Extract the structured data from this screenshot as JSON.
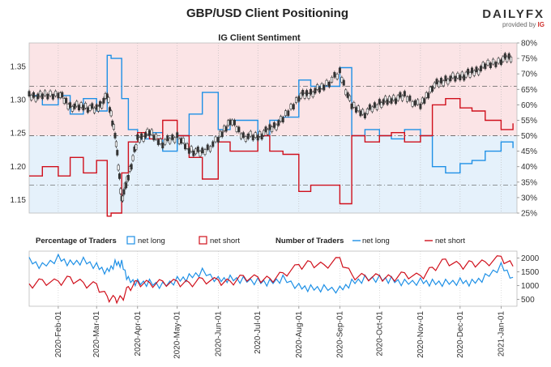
{
  "header": {
    "title": "GBP/USD Client Positioning",
    "subtitle": "IG Client Sentiment",
    "brand": "DAILYFX",
    "brand_sub": "provided by",
    "brand_ig": "IG"
  },
  "colors": {
    "long": "#1e90e6",
    "short": "#d0101c",
    "price": "#333333",
    "long_zone": "#e5f1fb",
    "short_zone": "#fbe4e6"
  },
  "legends": {
    "pct_title": "Percentage of Traders",
    "num_title": "Number of Traders",
    "net_long": "net long",
    "net_short": "net short"
  },
  "chart_data": [
    {
      "type": "line",
      "title": "IG Client Sentiment",
      "left_axis": {
        "ticks": [
          1.15,
          1.2,
          1.25,
          1.3,
          1.35
        ],
        "labels": [
          "1.15",
          "1.20",
          "1.25",
          "1.30",
          "1.35"
        ],
        "range": [
          1.13,
          1.385
        ]
      },
      "right_axis": {
        "ticks": [
          25,
          30,
          35,
          40,
          45,
          50,
          55,
          60,
          65,
          70,
          75,
          80
        ],
        "labels": [
          "25%",
          "30%",
          "35%",
          "40%",
          "45%",
          "50%",
          "55%",
          "60%",
          "65%",
          "70%",
          "75%",
          "80%"
        ],
        "range": [
          25,
          80
        ]
      },
      "reference_lines_pct": [
        34,
        50,
        66
      ],
      "price_series": {
        "name": "GBP/USD",
        "x": [
          "2020-01-10",
          "2020-01-20",
          "2020-02-01",
          "2020-02-10",
          "2020-02-20",
          "2020-03-01",
          "2020-03-09",
          "2020-03-15",
          "2020-03-20",
          "2020-03-25",
          "2020-04-01",
          "2020-04-10",
          "2020-04-20",
          "2020-05-01",
          "2020-05-10",
          "2020-05-20",
          "2020-06-01",
          "2020-06-10",
          "2020-06-20",
          "2020-07-01",
          "2020-07-10",
          "2020-07-20",
          "2020-08-01",
          "2020-08-10",
          "2020-08-20",
          "2020-09-01",
          "2020-09-10",
          "2020-09-20",
          "2020-10-01",
          "2020-10-10",
          "2020-10-20",
          "2020-11-01",
          "2020-11-10",
          "2020-11-20",
          "2020-12-01",
          "2020-12-10",
          "2020-12-20",
          "2021-01-01",
          "2021-01-10"
        ],
        "values": [
          1.305,
          1.305,
          1.31,
          1.29,
          1.29,
          1.285,
          1.305,
          1.25,
          1.15,
          1.185,
          1.24,
          1.25,
          1.235,
          1.245,
          1.225,
          1.22,
          1.24,
          1.27,
          1.245,
          1.245,
          1.255,
          1.27,
          1.305,
          1.31,
          1.32,
          1.34,
          1.29,
          1.28,
          1.295,
          1.3,
          1.305,
          1.29,
          1.32,
          1.33,
          1.335,
          1.34,
          1.35,
          1.36,
          1.365
        ]
      },
      "series": [
        {
          "name": "net long",
          "x": [
            "2020-01-10",
            "2020-01-20",
            "2020-02-01",
            "2020-02-10",
            "2020-02-20",
            "2020-03-01",
            "2020-03-09",
            "2020-03-12",
            "2020-03-20",
            "2020-03-25",
            "2020-04-01",
            "2020-04-10",
            "2020-04-20",
            "2020-05-01",
            "2020-05-10",
            "2020-05-20",
            "2020-06-01",
            "2020-06-10",
            "2020-06-20",
            "2020-07-01",
            "2020-07-10",
            "2020-07-20",
            "2020-08-01",
            "2020-08-10",
            "2020-08-20",
            "2020-09-01",
            "2020-09-10",
            "2020-09-20",
            "2020-10-01",
            "2020-10-10",
            "2020-10-20",
            "2020-11-01",
            "2020-11-10",
            "2020-11-20",
            "2020-12-01",
            "2020-12-10",
            "2020-12-20",
            "2021-01-01",
            "2021-01-10"
          ],
          "values": [
            63,
            60,
            63,
            57,
            62,
            58,
            76,
            75,
            62,
            52,
            49,
            51,
            45,
            50,
            57,
            64,
            52,
            55,
            55,
            50,
            55,
            56,
            68,
            66,
            66,
            72,
            50,
            52,
            50,
            49,
            52,
            50,
            40,
            38,
            41,
            42,
            45,
            48,
            46
          ]
        },
        {
          "name": "net short",
          "x": [
            "2020-01-10",
            "2020-01-20",
            "2020-02-01",
            "2020-02-10",
            "2020-02-20",
            "2020-03-01",
            "2020-03-09",
            "2020-03-12",
            "2020-03-20",
            "2020-03-25",
            "2020-04-01",
            "2020-04-10",
            "2020-04-20",
            "2020-05-01",
            "2020-05-10",
            "2020-05-20",
            "2020-06-01",
            "2020-06-10",
            "2020-06-20",
            "2020-07-01",
            "2020-07-10",
            "2020-07-20",
            "2020-08-01",
            "2020-08-10",
            "2020-08-20",
            "2020-09-01",
            "2020-09-10",
            "2020-09-20",
            "2020-10-01",
            "2020-10-10",
            "2020-10-20",
            "2020-11-01",
            "2020-11-10",
            "2020-11-20",
            "2020-12-01",
            "2020-12-10",
            "2020-12-20",
            "2021-01-01",
            "2021-01-10"
          ],
          "values": [
            37,
            40,
            37,
            43,
            38,
            42,
            24,
            25,
            38,
            48,
            51,
            49,
            55,
            50,
            43,
            36,
            48,
            45,
            45,
            50,
            45,
            44,
            32,
            34,
            34,
            28,
            50,
            48,
            50,
            51,
            48,
            50,
            60,
            62,
            59,
            58,
            55,
            52,
            54
          ]
        }
      ],
      "x_ticks": [
        "2020-Feb-01",
        "2020-Mar-01",
        "2020-Apr-01",
        "2020-May-01",
        "2020-Jun-01",
        "2020-Jul-01",
        "2020-Aug-01",
        "2020-Sep-01",
        "2020-Oct-01",
        "2020-Nov-01",
        "2020-Dec-01",
        "2021-Jan-01"
      ]
    },
    {
      "type": "line",
      "title": "Number of Traders",
      "right_axis": {
        "ticks": [
          500,
          1000,
          1500,
          2000
        ],
        "labels": [
          "500",
          "1000",
          "1500",
          "2000"
        ],
        "range": [
          250,
          2250
        ]
      },
      "series": [
        {
          "name": "net long",
          "x": [
            "2020-01-10",
            "2020-01-20",
            "2020-02-01",
            "2020-02-10",
            "2020-02-20",
            "2020-03-01",
            "2020-03-09",
            "2020-03-15",
            "2020-03-20",
            "2020-03-25",
            "2020-04-01",
            "2020-04-10",
            "2020-04-20",
            "2020-05-01",
            "2020-05-10",
            "2020-05-20",
            "2020-06-01",
            "2020-06-10",
            "2020-06-20",
            "2020-07-01",
            "2020-07-10",
            "2020-07-20",
            "2020-08-01",
            "2020-08-10",
            "2020-08-20",
            "2020-09-01",
            "2020-09-10",
            "2020-09-20",
            "2020-10-01",
            "2020-10-10",
            "2020-10-20",
            "2020-11-01",
            "2020-11-10",
            "2020-11-20",
            "2020-12-01",
            "2020-12-10",
            "2020-12-20",
            "2021-01-01",
            "2021-01-10"
          ],
          "values": [
            1900,
            1700,
            2000,
            1800,
            1900,
            1700,
            1500,
            1800,
            1800,
            1200,
            1100,
            1100,
            1000,
            1200,
            1300,
            1500,
            1200,
            1250,
            1200,
            1150,
            1100,
            1250,
            950,
            900,
            900,
            850,
            1100,
            1250,
            1250,
            1200,
            1100,
            1150,
            1100,
            1100,
            1150,
            1100,
            1300,
            1700,
            1300
          ]
        },
        {
          "name": "net short",
          "x": [
            "2020-01-10",
            "2020-01-20",
            "2020-02-01",
            "2020-02-10",
            "2020-02-20",
            "2020-03-01",
            "2020-03-09",
            "2020-03-15",
            "2020-03-20",
            "2020-03-25",
            "2020-04-01",
            "2020-04-10",
            "2020-04-20",
            "2020-05-01",
            "2020-05-10",
            "2020-05-20",
            "2020-06-01",
            "2020-06-10",
            "2020-06-20",
            "2020-07-01",
            "2020-07-10",
            "2020-07-20",
            "2020-08-01",
            "2020-08-10",
            "2020-08-20",
            "2020-09-01",
            "2020-09-10",
            "2020-09-20",
            "2020-10-01",
            "2020-10-10",
            "2020-10-20",
            "2020-11-01",
            "2020-11-10",
            "2020-11-20",
            "2020-12-01",
            "2020-12-10",
            "2020-12-20",
            "2021-01-01",
            "2021-01-10"
          ],
          "values": [
            1000,
            1150,
            1100,
            1250,
            1050,
            1000,
            550,
            500,
            500,
            900,
            1100,
            1050,
            1100,
            1100,
            1050,
            1200,
            1150,
            1100,
            1300,
            1250,
            1200,
            1400,
            1700,
            1800,
            1700,
            1950,
            1350,
            1300,
            1300,
            1250,
            1400,
            1300,
            1600,
            1900,
            1700,
            1800,
            1800,
            2000,
            1700
          ]
        }
      ]
    }
  ]
}
